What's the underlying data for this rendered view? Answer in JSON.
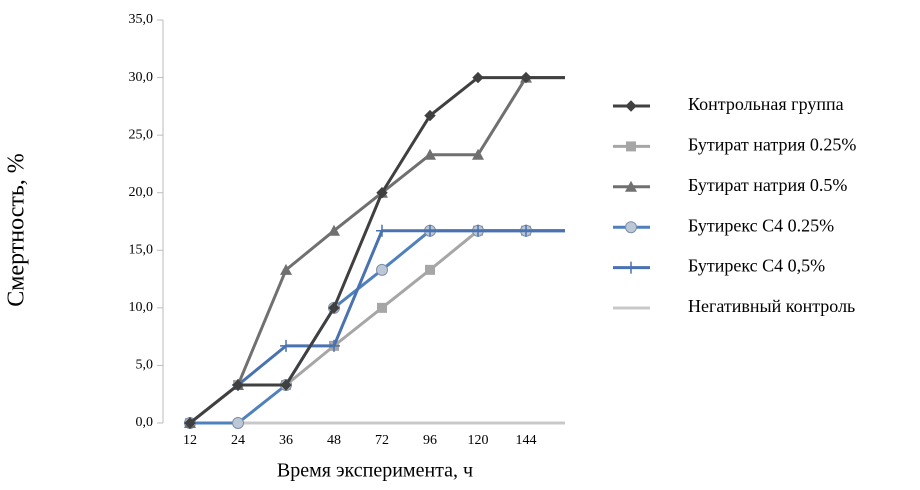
{
  "chart_data": {
    "type": "line",
    "xlabel": "Время эксперимента, ч",
    "ylabel": "Смертность, %",
    "categories": [
      "12",
      "24",
      "36",
      "48",
      "72",
      "96",
      "120",
      "144",
      null
    ],
    "ylim": [
      0,
      35
    ],
    "yticks": [
      {
        "value": 0,
        "label": "0,0"
      },
      {
        "value": 5,
        "label": "5,0"
      },
      {
        "value": 10,
        "label": "10,0"
      },
      {
        "value": 15,
        "label": "15,0"
      },
      {
        "value": 20,
        "label": "20,0"
      },
      {
        "value": 25,
        "label": "25,0"
      },
      {
        "value": 30,
        "label": "30,0"
      },
      {
        "value": 35,
        "label": "35,0"
      }
    ],
    "legend": "right",
    "series": [
      {
        "name": "Контрольная группа",
        "color": "#404040",
        "marker": "diamond",
        "values": [
          0,
          3.3,
          3.3,
          10,
          20,
          26.7,
          30,
          30,
          30
        ]
      },
      {
        "name": "Бутират натрия 0.25%",
        "color": "#a6a6a6",
        "marker": "square",
        "values": [
          0,
          3.3,
          3.3,
          6.7,
          10,
          13.3,
          16.7,
          16.7,
          16.7
        ]
      },
      {
        "name": "Бутират натрия 0.5%",
        "color": "#707070",
        "marker": "triangle",
        "values": [
          0,
          3.3,
          13.3,
          16.7,
          20,
          23.3,
          23.3,
          30,
          30
        ]
      },
      {
        "name": "Бутирекс С4 0.25%",
        "color": "#4f81bd",
        "marker": "circle",
        "values": [
          0,
          0,
          3.3,
          10,
          13.3,
          16.7,
          16.7,
          16.7,
          16.7
        ]
      },
      {
        "name": "Бутирекс С4 0,5%",
        "color": "#4a72b0",
        "marker": "plus",
        "values": [
          0,
          3.3,
          6.7,
          6.7,
          16.7,
          16.7,
          16.7,
          16.7,
          16.7
        ]
      },
      {
        "name": "Негативный контроль",
        "color": "#c8c8c8",
        "marker": "none",
        "values": [
          0,
          0,
          0,
          0,
          0,
          0,
          0,
          0,
          0
        ]
      }
    ]
  }
}
